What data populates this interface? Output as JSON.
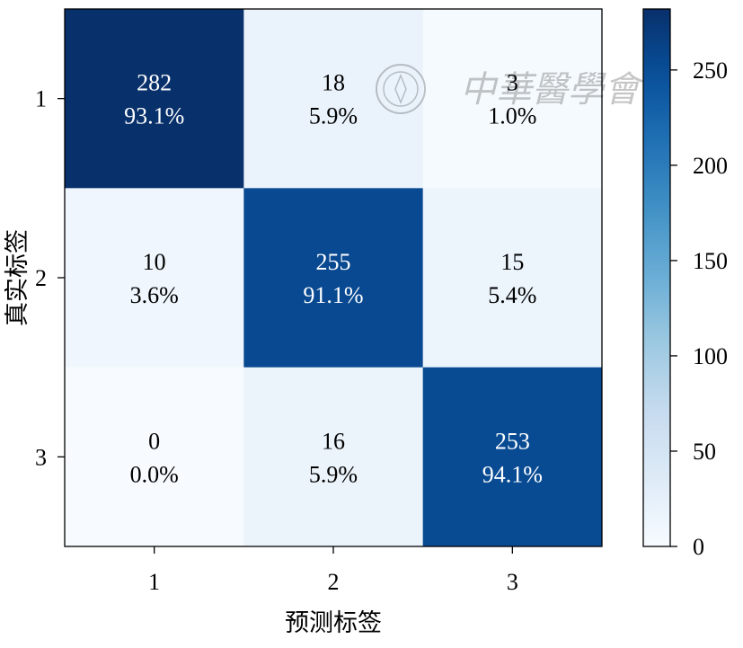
{
  "chart_data": {
    "type": "heatmap",
    "title": "",
    "xlabel": "预测标签",
    "ylabel": "真实标签",
    "x_categories": [
      "1",
      "2",
      "3"
    ],
    "y_categories": [
      "1",
      "2",
      "3"
    ],
    "matrix": [
      [
        282,
        18,
        3
      ],
      [
        10,
        255,
        15
      ],
      [
        0,
        16,
        253
      ]
    ],
    "percent_labels": [
      [
        "93.1%",
        "5.9%",
        "1.0%"
      ],
      [
        "3.6%",
        "91.1%",
        "5.4%"
      ],
      [
        "0.0%",
        "5.9%",
        "94.1%"
      ]
    ],
    "colorbar": {
      "range": [
        0,
        282
      ],
      "ticks": [
        0,
        50,
        100,
        150,
        200,
        250
      ],
      "colormap": "Blues",
      "low_color": "#f7fbff",
      "high_color": "#08306b"
    },
    "grid": false,
    "legend": "colorbar-right"
  },
  "watermark": {
    "text": "中華醫學會",
    "color": "#000000"
  }
}
